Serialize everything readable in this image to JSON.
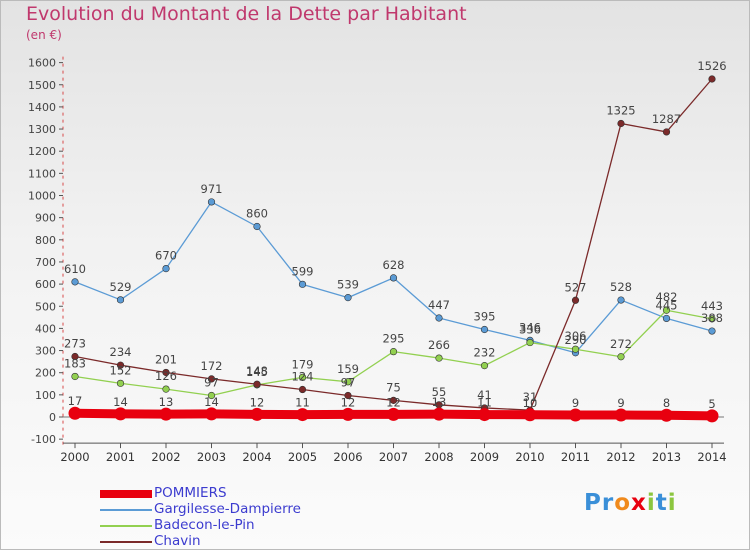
{
  "title": "Evolution du Montant de la Dette par Habitant",
  "unit": "(en €)",
  "logo_text": "Proxiti",
  "chart_data": {
    "type": "line",
    "x": [
      "2000",
      "2001",
      "2002",
      "2003",
      "2004",
      "2005",
      "2006",
      "2007",
      "2008",
      "2009",
      "2010",
      "2011",
      "2012",
      "2013",
      "2014"
    ],
    "ylim": [
      -100,
      1600
    ],
    "yticks": [
      "-100",
      "0",
      "100",
      "200",
      "300",
      "400",
      "500",
      "600",
      "700",
      "800",
      "900",
      "1000",
      "1100",
      "1200",
      "1300",
      "1400",
      "1500",
      "1600"
    ],
    "grid": false,
    "legend_position": "bottom-left",
    "series": [
      {
        "name": "POMMIERS",
        "color": "#e8000f",
        "values": [
          17,
          14,
          13,
          14,
          12,
          11,
          12,
          12,
          13,
          11,
          10,
          9,
          9,
          8,
          5
        ],
        "labels": [
          "17",
          "14",
          "13",
          "14",
          "12",
          "11",
          "12",
          "12",
          "13",
          "11",
          "10",
          "9",
          "9",
          "8",
          "5"
        ]
      },
      {
        "name": "Gargilesse-Dampierre",
        "color": "#5b9bd5",
        "values": [
          610,
          529,
          670,
          971,
          860,
          599,
          539,
          628,
          447,
          395,
          346,
          290,
          528,
          445,
          388
        ],
        "labels": [
          "610",
          "529",
          "670",
          "971",
          "860",
          "599",
          "539",
          "628",
          "447",
          "395",
          "346",
          "290",
          "528",
          "445",
          "388"
        ]
      },
      {
        "name": "Badecon-le-Pin",
        "color": "#92d050",
        "values": [
          183,
          152,
          126,
          97,
          145,
          179,
          159,
          295,
          266,
          232,
          336,
          306,
          272,
          482,
          443
        ],
        "labels": [
          "183",
          "152",
          "126",
          "97",
          "145",
          "179",
          "159",
          "295",
          "266",
          "232",
          "336",
          "306",
          "272",
          "482",
          "443"
        ]
      },
      {
        "name": "Chavin",
        "color": "#7b2a2a",
        "values": [
          273,
          234,
          201,
          172,
          148,
          124,
          97,
          75,
          55,
          41,
          31,
          527,
          1325,
          1287,
          1526
        ],
        "labels": [
          "273",
          "234",
          "201",
          "172",
          "148",
          "124",
          "97",
          "75",
          "55",
          "41",
          "31",
          "527",
          "1325",
          "1287",
          "1526"
        ]
      }
    ]
  }
}
